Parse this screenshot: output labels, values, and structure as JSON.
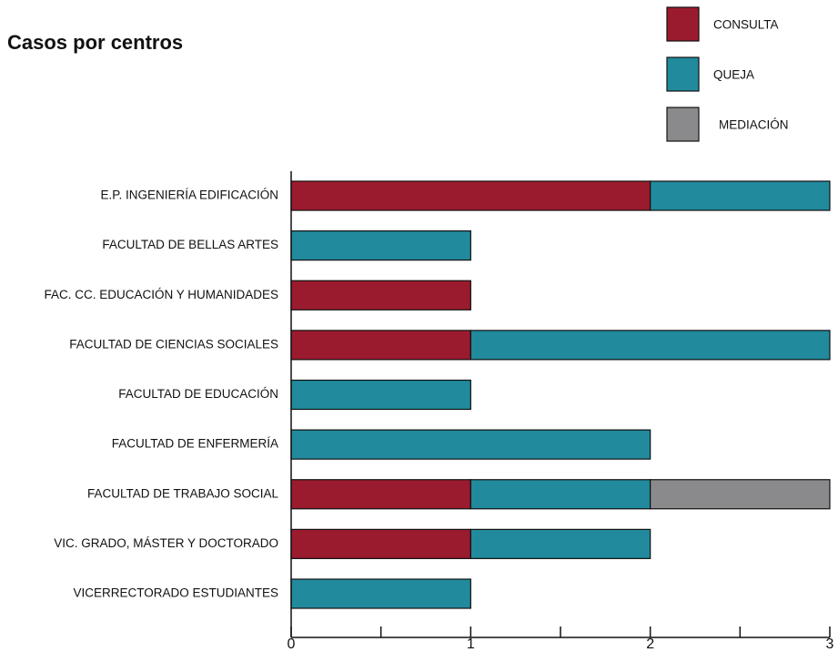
{
  "chart_data": {
    "type": "stacked_barh",
    "title": "Casos por centros",
    "categories": [
      "E.P. INGENIERÍA EDIFICACIÓN",
      "FACULTAD DE BELLAS ARTES",
      "FAC. CC. EDUCACIÓN Y HUMANIDADES",
      "FACULTAD DE CIENCIAS SOCIALES",
      "FACULTAD DE EDUCACIÓN",
      "FACULTAD DE ENFERMERÍA",
      "FACULTAD DE TRABAJO SOCIAL",
      "VIC. GRADO, MÁSTER Y DOCTORADO",
      "VICERRECTORADO ESTUDIANTES"
    ],
    "series": [
      {
        "name": "CONSULTA",
        "color": "#9b1b2e",
        "values": [
          2,
          0,
          1,
          1,
          0,
          0,
          1,
          1,
          0
        ]
      },
      {
        "name": "QUEJA",
        "color": "#218a9c",
        "values": [
          1,
          1,
          0,
          2,
          1,
          2,
          1,
          1,
          1
        ]
      },
      {
        "name": "MEDIACIÓN",
        "color": "#8a8a8c",
        "values": [
          0,
          0,
          0,
          0,
          0,
          0,
          1,
          0,
          0
        ]
      }
    ],
    "xlim": [
      0,
      3
    ],
    "xticks": [
      0,
      1,
      2,
      3
    ],
    "xminorticks": [
      0.5,
      1.5,
      2.5
    ]
  }
}
